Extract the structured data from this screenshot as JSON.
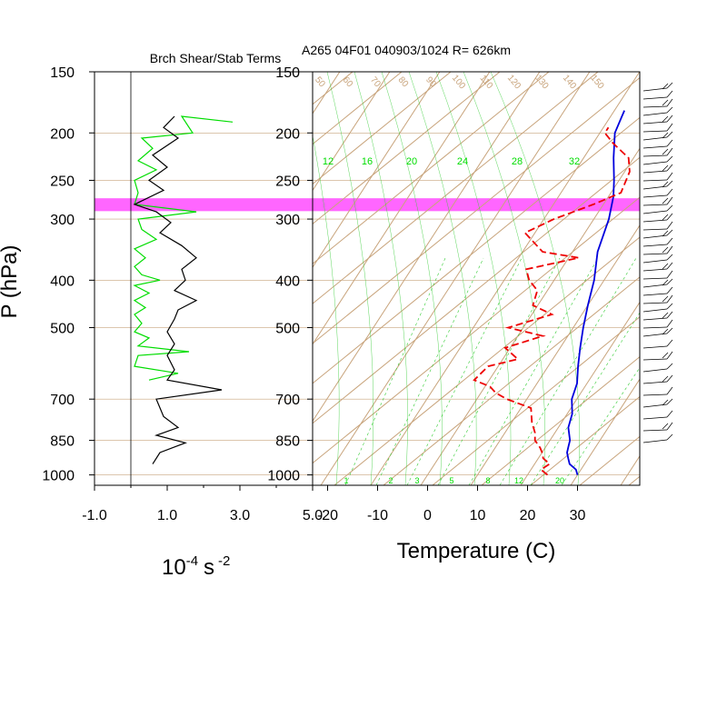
{
  "colors": {
    "black": "#000000",
    "green": "#00dd00",
    "blue": "#0000dd",
    "red": "#ee0000",
    "tan": "#c8a47c",
    "highlight": "#ff66ff",
    "ltgreen": "#33cc33"
  },
  "chart_data": [
    {
      "type": "line",
      "title": "Brch Shear/Stab Terms",
      "ylabel": "P (hPa)",
      "xlabel_base": "10",
      "xlabel_exp": "-4",
      "xlabel_unit": "s",
      "xlabel_unit_exp": "-2",
      "xlim": [
        -1.0,
        5.0
      ],
      "xticks": [
        "-1.0",
        "1.0",
        "3.0",
        "5.0"
      ],
      "xtick_values": [
        -1,
        1,
        3,
        5
      ],
      "yticks": [
        "150",
        "200",
        "250",
        "300",
        "400",
        "500",
        "700",
        "850",
        "1000"
      ],
      "ytick_values": [
        150,
        200,
        250,
        300,
        400,
        500,
        700,
        850,
        1000
      ],
      "zero_line": 0,
      "highlight_p": [
        272,
        289
      ],
      "series": [
        {
          "color": "green",
          "points": [
            [
              2.8,
              190
            ],
            [
              1.4,
              185
            ],
            [
              1.7,
              200
            ],
            [
              0.3,
              205
            ],
            [
              0.6,
              215
            ],
            [
              0.2,
              228
            ],
            [
              0.7,
              238
            ],
            [
              0.1,
              250
            ],
            [
              0.2,
              265
            ],
            [
              0.1,
              280
            ],
            [
              1.8,
              290
            ],
            [
              0.2,
              300
            ],
            [
              0.3,
              315
            ],
            [
              0.7,
              330
            ],
            [
              0.1,
              345
            ],
            [
              0.4,
              360
            ],
            [
              0.1,
              375
            ],
            [
              0.3,
              390
            ],
            [
              0.8,
              400
            ],
            [
              0.1,
              410
            ],
            [
              0.5,
              425
            ],
            [
              0.1,
              440
            ],
            [
              0.4,
              455
            ],
            [
              0.1,
              470
            ],
            [
              0.3,
              490
            ],
            [
              0.1,
              510
            ],
            [
              0.5,
              525
            ],
            [
              0.2,
              545
            ],
            [
              1.6,
              560
            ],
            [
              0.2,
              570
            ],
            [
              0.1,
              600
            ],
            [
              1.3,
              620
            ],
            [
              0.5,
              640
            ]
          ]
        },
        {
          "color": "black",
          "points": [
            [
              1.2,
              185
            ],
            [
              0.9,
              195
            ],
            [
              1.3,
              205
            ],
            [
              0.6,
              222
            ],
            [
              1.0,
              235
            ],
            [
              0.5,
              250
            ],
            [
              0.9,
              262
            ],
            [
              0.1,
              280
            ],
            [
              0.7,
              290
            ],
            [
              1.1,
              305
            ],
            [
              0.8,
              320
            ],
            [
              1.4,
              340
            ],
            [
              1.8,
              360
            ],
            [
              1.4,
              380
            ],
            [
              1.5,
              400
            ],
            [
              1.2,
              420
            ],
            [
              1.8,
              440
            ],
            [
              1.3,
              460
            ],
            [
              1.2,
              480
            ],
            [
              1.0,
              510
            ],
            [
              1.2,
              540
            ],
            [
              1.0,
              570
            ],
            [
              1.2,
              610
            ],
            [
              1.0,
              640
            ],
            [
              2.5,
              670
            ],
            [
              0.7,
              700
            ],
            [
              0.9,
              760
            ],
            [
              1.3,
              800
            ],
            [
              0.7,
              830
            ],
            [
              1.5,
              860
            ],
            [
              0.8,
              900
            ],
            [
              0.6,
              950
            ]
          ]
        }
      ]
    },
    {
      "type": "line",
      "title": "A265 04F01 040903/1024 R= 626km",
      "xlabel": "Temperature (C)",
      "xticks": [
        "-20",
        "-10",
        "0",
        "10",
        "20",
        "30"
      ],
      "xtick_values": [
        -20,
        -10,
        0,
        10,
        20,
        30
      ],
      "yticks": [
        "150",
        "200",
        "250",
        "300",
        "400",
        "500",
        "700",
        "850",
        "1000"
      ],
      "ytick_values": [
        150,
        200,
        250,
        300,
        400,
        500,
        700,
        850,
        1000
      ],
      "mixing_ratio_labels": [
        "12",
        "16",
        "20",
        "24",
        "28",
        "32"
      ],
      "mixing_ratio_bottom_labels": [
        "1",
        "2",
        "3",
        "5",
        "8",
        "12",
        "20"
      ],
      "dry_adiabat_labels": [
        "50",
        "60",
        "70",
        "80",
        "90",
        "100",
        "110",
        "120",
        "130",
        "140",
        "150"
      ],
      "series": [
        {
          "name": "temperature",
          "color": "blue",
          "points": [
            [
              30,
              1000
            ],
            [
              29,
              975
            ],
            [
              27,
              950
            ],
            [
              26,
              925
            ],
            [
              25,
              900
            ],
            [
              24.5,
              875
            ],
            [
              24,
              850
            ],
            [
              22,
              800
            ],
            [
              21,
              750
            ],
            [
              19,
              700
            ],
            [
              18,
              650
            ],
            [
              16,
              600
            ],
            [
              14,
              550
            ],
            [
              12,
              500
            ],
            [
              10,
              450
            ],
            [
              8,
              400
            ],
            [
              5,
              350
            ],
            [
              3,
              300
            ],
            [
              1,
              270
            ],
            [
              -1,
              250
            ],
            [
              -4,
              225
            ],
            [
              -7,
              200
            ],
            [
              -8,
              180
            ]
          ]
        },
        {
          "name": "dewpoint",
          "color": "red",
          "dashed": true,
          "points": [
            [
              24,
              1000
            ],
            [
              22,
              975
            ],
            [
              23,
              950
            ],
            [
              21,
              925
            ],
            [
              20,
              900
            ],
            [
              19,
              880
            ],
            [
              17,
              850
            ],
            [
              16,
              820
            ],
            [
              14,
              780
            ],
            [
              12,
              730
            ],
            [
              6,
              700
            ],
            [
              3,
              680
            ],
            [
              1,
              660
            ],
            [
              -3,
              640
            ],
            [
              -2,
              600
            ],
            [
              3,
              580
            ],
            [
              -1,
              550
            ],
            [
              5,
              520
            ],
            [
              -3,
              500
            ],
            [
              4,
              470
            ],
            [
              -1,
              450
            ],
            [
              -2,
              420
            ],
            [
              -5,
              400
            ],
            [
              -7,
              380
            ],
            [
              2,
              360
            ],
            [
              -6,
              350
            ],
            [
              -12,
              320
            ],
            [
              -8,
              300
            ],
            [
              -2,
              280
            ],
            [
              2,
              265
            ],
            [
              1,
              240
            ],
            [
              -1,
              225
            ],
            [
              -6,
              210
            ],
            [
              -9,
              200
            ],
            [
              -9,
              195
            ]
          ]
        }
      ],
      "wind_barbs": true
    }
  ]
}
